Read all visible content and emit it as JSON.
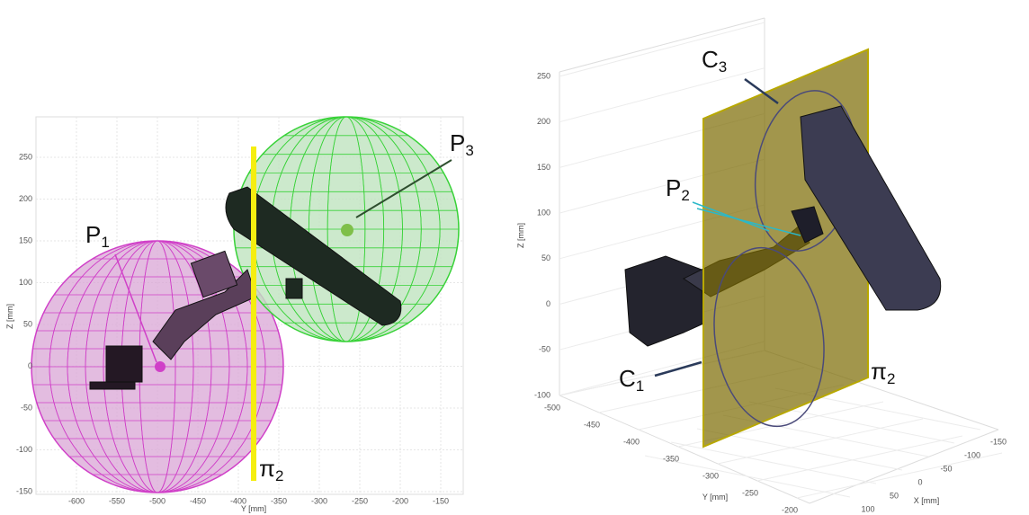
{
  "left_plot": {
    "z_axis_label": "Z [mm]",
    "y_axis_label": "Y [mm]",
    "z_ticks": [
      250,
      200,
      150,
      100,
      50,
      0,
      -50,
      -100,
      -150
    ],
    "y_ticks": [
      -600,
      -550,
      -500,
      -450,
      -400,
      -350,
      -300,
      -250,
      -200,
      -150
    ],
    "annotations": {
      "p1": {
        "main": "P",
        "sub": "1"
      },
      "p3": {
        "main": "P",
        "sub": "3"
      },
      "pi2": {
        "main": "π",
        "sub": "2"
      }
    }
  },
  "right_plot": {
    "z_axis_label": "Z [mm]",
    "y_axis_label": "Y [mm]",
    "x_axis_label": "X [mm]",
    "z_ticks": [
      250,
      200,
      150,
      100,
      50,
      0,
      -50,
      -100
    ],
    "y_ticks": [
      -500,
      -450,
      -400,
      -350,
      -300,
      -250,
      -200
    ],
    "x_ticks": [
      -150,
      -100,
      -50,
      0,
      50,
      100
    ],
    "annotations": {
      "c3": {
        "main": "C",
        "sub": "3"
      },
      "p2": {
        "main": "P",
        "sub": "2"
      },
      "c1": {
        "main": "C",
        "sub": "1"
      },
      "pi2": {
        "main": "π",
        "sub": "2"
      }
    }
  }
}
